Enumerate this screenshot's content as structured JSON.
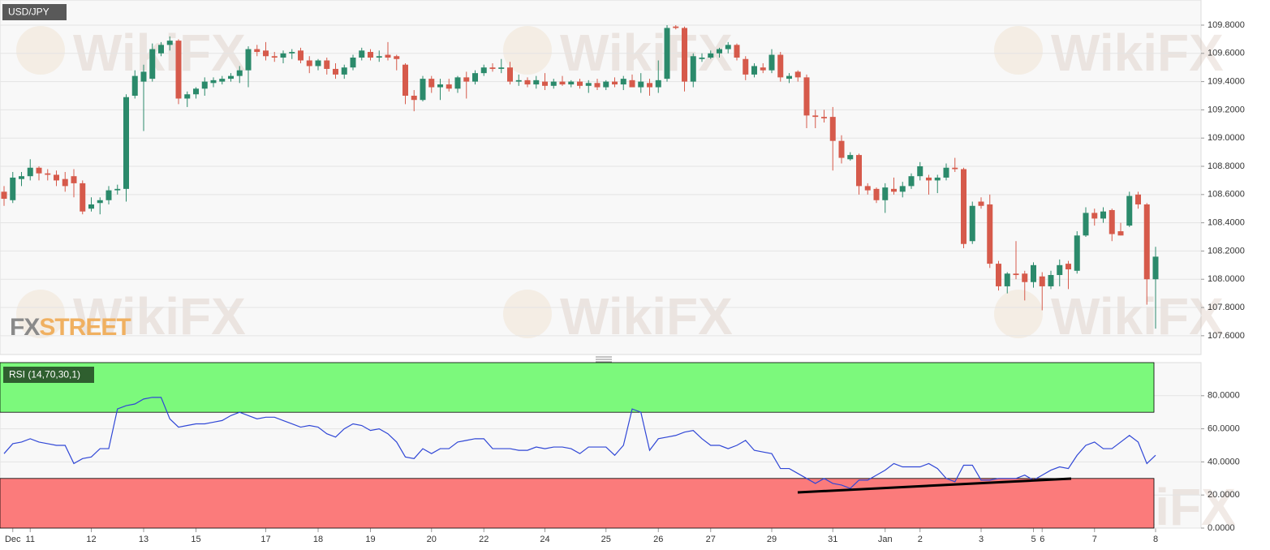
{
  "chart_data": [
    {
      "type": "candlestick",
      "title": "USD/JPY",
      "watermark": "WikiFX",
      "logo": [
        "FX",
        "STREET"
      ],
      "categories": [
        null,
        "Dec",
        null,
        "11",
        null,
        null,
        null,
        null,
        null,
        null,
        "12",
        null,
        null,
        null,
        null,
        null,
        "13",
        null,
        null,
        null,
        null,
        null,
        "15",
        null,
        null,
        null,
        null,
        null,
        null,
        null,
        "17",
        null,
        null,
        null,
        null,
        null,
        "18",
        null,
        null,
        null,
        null,
        null,
        "19",
        null,
        null,
        null,
        null,
        null,
        null,
        "20",
        null,
        null,
        null,
        null,
        null,
        "22",
        null,
        null,
        null,
        null,
        null,
        null,
        "24",
        null,
        null,
        null,
        null,
        null,
        null,
        "25",
        null,
        null,
        null,
        null,
        null,
        "26",
        null,
        null,
        null,
        null,
        null,
        "27",
        null,
        null,
        null,
        null,
        null,
        null,
        "29",
        null,
        null,
        null,
        null,
        null,
        null,
        "31",
        null,
        null,
        null,
        null,
        null,
        "Jan",
        null,
        null,
        null,
        "2",
        null,
        null,
        null,
        null,
        null,
        null,
        "3",
        null,
        null,
        null,
        null,
        null,
        "5",
        "6",
        null,
        null,
        null,
        null,
        null,
        "7",
        null,
        null,
        null,
        null,
        null,
        null,
        "8"
      ],
      "open": [
        108.62,
        108.56,
        108.71,
        108.73,
        108.79,
        108.75,
        108.74,
        108.71,
        108.73,
        108.68,
        108.5,
        108.54,
        108.56,
        108.63,
        108.64,
        109.3,
        109.4,
        109.42,
        109.6,
        109.66,
        109.69,
        109.28,
        109.31,
        109.35,
        109.39,
        109.4,
        109.42,
        109.44,
        109.48,
        109.63,
        109.62,
        109.58,
        109.57,
        109.6,
        109.62,
        109.55,
        109.51,
        109.55,
        109.49,
        109.45,
        109.5,
        109.57,
        109.61,
        109.57,
        109.59,
        109.58,
        109.52,
        109.3,
        109.27,
        109.42,
        109.36,
        109.38,
        109.35,
        109.43,
        109.4,
        109.46,
        109.5,
        109.49,
        109.5,
        109.4,
        109.41,
        109.38,
        109.4,
        109.37,
        109.4,
        109.38,
        109.4,
        109.37,
        109.39,
        109.36,
        109.4,
        109.38,
        109.41,
        109.36,
        109.39,
        109.36,
        109.42,
        109.79,
        109.78,
        109.4,
        109.56,
        109.57,
        109.6,
        109.63,
        109.66,
        109.56,
        109.45,
        109.5,
        109.48,
        109.59,
        109.42,
        109.47,
        109.43,
        109.16,
        109.15,
        109.15,
        108.98,
        108.85,
        108.88,
        108.66,
        108.64,
        108.56,
        108.64,
        108.62,
        108.66,
        108.73,
        108.72,
        108.7,
        108.72,
        108.79,
        108.78,
        108.27,
        108.55,
        108.53,
        108.11,
        107.95,
        108.04,
        108.04,
        107.98,
        108.02,
        107.95,
        108.03,
        108.11,
        108.06,
        108.31,
        108.47,
        108.43,
        108.49,
        108.34,
        108.38,
        108.6,
        108.53,
        108.0
      ],
      "high": [
        108.66,
        108.76,
        108.76,
        108.85,
        108.8,
        108.78,
        108.77,
        108.76,
        108.78,
        108.7,
        108.58,
        108.58,
        108.66,
        108.67,
        109.31,
        109.48,
        109.52,
        109.67,
        109.68,
        109.72,
        109.7,
        109.33,
        109.36,
        109.43,
        109.43,
        109.44,
        109.46,
        109.51,
        109.65,
        109.66,
        109.68,
        109.61,
        109.62,
        109.63,
        109.64,
        109.58,
        109.56,
        109.57,
        109.53,
        109.52,
        109.59,
        109.64,
        109.63,
        109.62,
        109.68,
        109.59,
        109.53,
        109.34,
        109.44,
        109.44,
        109.42,
        109.42,
        109.44,
        109.47,
        109.48,
        109.52,
        109.53,
        109.56,
        109.54,
        109.45,
        109.43,
        109.44,
        109.46,
        109.42,
        109.44,
        109.41,
        109.42,
        109.41,
        109.42,
        109.41,
        109.43,
        109.44,
        109.45,
        109.46,
        109.42,
        109.55,
        109.8,
        109.8,
        109.79,
        109.6,
        109.6,
        109.62,
        109.64,
        109.68,
        109.67,
        109.58,
        109.53,
        109.53,
        109.63,
        109.61,
        109.46,
        109.48,
        109.45,
        109.2,
        109.2,
        109.22,
        109.02,
        108.9,
        108.89,
        108.68,
        108.65,
        108.68,
        108.72,
        108.69,
        108.75,
        108.83,
        108.74,
        108.74,
        108.82,
        108.86,
        108.79,
        108.55,
        108.58,
        108.6,
        108.13,
        108.05,
        108.27,
        108.06,
        108.12,
        108.05,
        108.06,
        108.14,
        108.13,
        108.34,
        108.51,
        108.5,
        108.51,
        108.5,
        108.4,
        108.62,
        108.62,
        108.54,
        108.23
      ],
      "low": [
        108.52,
        108.54,
        108.66,
        108.7,
        108.7,
        108.7,
        108.66,
        108.62,
        108.58,
        108.46,
        108.48,
        108.46,
        108.53,
        108.6,
        108.55,
        109.28,
        109.05,
        109.4,
        109.58,
        109.62,
        109.24,
        109.22,
        109.28,
        109.3,
        109.36,
        109.38,
        109.4,
        109.39,
        109.36,
        109.58,
        109.55,
        109.54,
        109.53,
        109.56,
        109.53,
        109.46,
        109.48,
        109.45,
        109.42,
        109.42,
        109.48,
        109.55,
        109.55,
        109.54,
        109.55,
        109.48,
        109.24,
        109.19,
        109.26,
        109.32,
        109.27,
        109.33,
        109.32,
        109.28,
        109.38,
        109.44,
        109.47,
        109.46,
        109.38,
        109.37,
        109.36,
        109.35,
        109.34,
        109.35,
        109.37,
        109.36,
        109.35,
        109.32,
        109.34,
        109.34,
        109.36,
        109.34,
        109.36,
        109.32,
        109.3,
        109.32,
        109.4,
        109.77,
        109.33,
        109.36,
        109.54,
        109.56,
        109.57,
        109.6,
        109.55,
        109.41,
        109.43,
        109.46,
        109.46,
        109.4,
        109.39,
        109.4,
        109.07,
        109.07,
        109.11,
        108.77,
        108.82,
        108.84,
        108.6,
        108.6,
        108.54,
        108.47,
        108.6,
        108.58,
        108.64,
        108.7,
        108.6,
        108.61,
        108.7,
        108.76,
        108.22,
        108.25,
        108.5,
        108.08,
        107.92,
        107.9,
        108.0,
        107.85,
        107.94,
        107.78,
        107.93,
        107.95,
        107.93,
        108.04,
        108.3,
        108.38,
        108.4,
        108.27,
        108.31,
        108.37,
        108.5,
        107.82,
        107.65
      ],
      "close": [
        108.57,
        108.72,
        108.73,
        108.79,
        108.75,
        108.74,
        108.7,
        108.66,
        108.68,
        108.48,
        108.53,
        108.56,
        108.63,
        108.64,
        109.29,
        109.44,
        109.47,
        109.63,
        109.66,
        109.69,
        109.28,
        109.31,
        109.35,
        109.4,
        109.41,
        109.42,
        109.44,
        109.48,
        109.63,
        109.61,
        109.58,
        109.57,
        109.6,
        109.61,
        109.55,
        109.51,
        109.55,
        109.49,
        109.45,
        109.5,
        109.57,
        109.62,
        109.57,
        109.58,
        109.57,
        109.56,
        109.3,
        109.27,
        109.42,
        109.36,
        109.38,
        109.35,
        109.43,
        109.4,
        109.46,
        109.5,
        109.49,
        109.5,
        109.4,
        109.41,
        109.38,
        109.41,
        109.37,
        109.4,
        109.38,
        109.4,
        109.37,
        109.39,
        109.36,
        109.4,
        109.38,
        109.42,
        109.36,
        109.4,
        109.36,
        109.41,
        109.78,
        109.78,
        109.4,
        109.58,
        109.57,
        109.6,
        109.63,
        109.66,
        109.57,
        109.45,
        109.51,
        109.48,
        109.59,
        109.43,
        109.44,
        109.43,
        109.16,
        109.15,
        109.14,
        108.98,
        108.86,
        108.88,
        108.66,
        108.63,
        108.56,
        108.65,
        108.62,
        108.66,
        108.73,
        108.8,
        108.7,
        108.72,
        108.79,
        108.78,
        108.25,
        108.52,
        108.52,
        108.11,
        107.95,
        108.04,
        108.03,
        107.98,
        108.1,
        107.95,
        108.03,
        108.1,
        108.07,
        108.31,
        108.47,
        108.43,
        108.48,
        108.32,
        108.31,
        108.59,
        108.53,
        108.0,
        108.16
      ],
      "up_color": "#2b8a6b",
      "down_color": "#d65a4b",
      "ylim": [
        107.467,
        109.978
      ],
      "yticks": [
        {
          "value": 107.6,
          "label": "107.6000"
        },
        {
          "value": 107.8,
          "label": "107.8000"
        },
        {
          "value": 108.0,
          "label": "108.0000"
        },
        {
          "value": 108.2,
          "label": "108.2000"
        },
        {
          "value": 108.4,
          "label": "108.4000"
        },
        {
          "value": 108.6,
          "label": "108.6000"
        },
        {
          "value": 108.8,
          "label": "108.8000"
        },
        {
          "value": 109.0,
          "label": "109.0000"
        },
        {
          "value": 109.2,
          "label": "109.2000"
        },
        {
          "value": 109.4,
          "label": "109.4000"
        },
        {
          "value": 109.6,
          "label": "109.6000"
        },
        {
          "value": 109.8,
          "label": "109.8000"
        }
      ],
      "grid": true
    },
    {
      "type": "line",
      "title": "RSI (14,70,30,1)",
      "color": "#3047d6",
      "values": [
        45,
        51,
        52,
        54,
        52,
        51,
        50,
        50,
        39,
        42,
        43,
        48,
        48,
        72,
        74,
        75,
        78,
        79,
        79,
        66,
        61,
        62,
        63,
        63,
        64,
        65,
        68,
        70,
        68,
        66,
        67,
        67,
        65,
        63,
        61,
        62,
        61,
        57,
        55,
        60,
        63,
        62,
        59,
        60,
        57,
        52,
        43,
        42,
        48,
        45,
        48,
        48,
        52,
        53,
        54,
        54,
        48,
        48,
        48,
        47,
        47,
        49,
        48,
        49,
        49,
        48,
        45,
        49,
        49,
        49,
        44,
        50,
        72,
        70,
        47,
        54,
        55,
        56,
        58,
        59,
        54,
        50,
        50,
        48,
        50,
        53,
        47,
        46,
        45,
        36,
        36,
        33,
        30,
        27,
        30,
        27,
        26,
        24,
        29,
        29,
        32,
        35,
        39,
        37,
        37,
        37,
        39,
        36,
        30,
        28,
        38,
        38,
        29,
        29,
        30,
        30,
        30,
        32,
        29,
        32,
        35,
        37,
        36,
        44,
        50,
        52,
        48,
        48,
        52,
        56,
        52,
        39,
        44
      ],
      "overbought": 70,
      "oversold": 30,
      "overbought_color": "#7cf97c",
      "oversold_color": "#fb7b7b",
      "ylim": [
        0,
        100
      ],
      "yticks": [
        {
          "value": 0,
          "label": "0.0000"
        },
        {
          "value": 20,
          "label": "20.0000"
        },
        {
          "value": 40,
          "label": "40.0000"
        },
        {
          "value": 60,
          "label": "60.0000"
        },
        {
          "value": 80,
          "label": "80.0000"
        }
      ],
      "grid": true
    }
  ]
}
